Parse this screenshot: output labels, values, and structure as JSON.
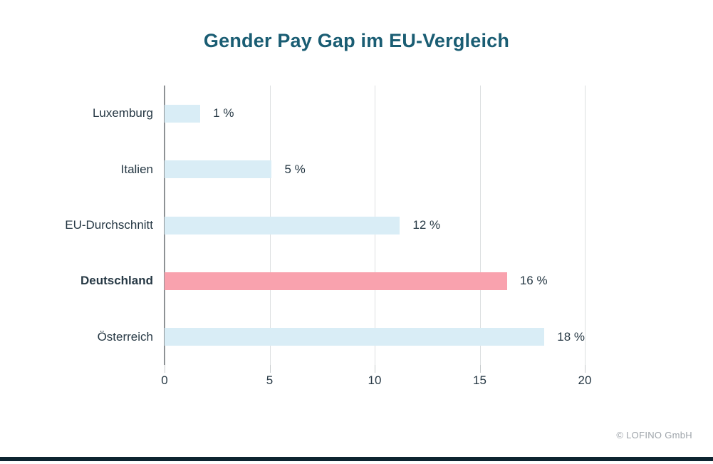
{
  "page": {
    "title": "Gender Pay Gap im EU-Vergleich",
    "footer": "© LOFINO GmbH"
  },
  "colors": {
    "title_text": "#1A5D73",
    "body_text": "#263844",
    "bar_default": "#D9EDF6",
    "bar_highlight": "#F9A2AE",
    "axis_line": "#8E9295",
    "gridline": "#DCDFE0",
    "footer_text": "#9EA4AA",
    "bottom_strip": "#0D2430"
  },
  "chart_data": {
    "type": "bar",
    "orientation": "horizontal",
    "title": "Gender Pay Gap im EU-Vergleich",
    "categories": [
      "Luxemburg",
      "Italien",
      "EU-Durchschnitt",
      "Deutschland",
      "Österreich"
    ],
    "values": [
      1,
      5,
      12,
      16,
      18
    ],
    "value_labels": [
      "1 %",
      "5 %",
      "12 %",
      "16 %",
      "18 %"
    ],
    "bar_display_lengths": [
      1.7,
      5.1,
      11.2,
      16.3,
      18.3
    ],
    "highlighted_category": "Deutschland",
    "xlabel": "",
    "ylabel": "",
    "xlim": [
      0,
      20
    ],
    "x_ticks": [
      0,
      5,
      10,
      15,
      20
    ],
    "x_tick_labels": [
      "0",
      "5",
      "10",
      "15",
      "20"
    ],
    "grid": "vertical gridlines at x ticks, solid axis line at 0",
    "legend_position": "none"
  }
}
